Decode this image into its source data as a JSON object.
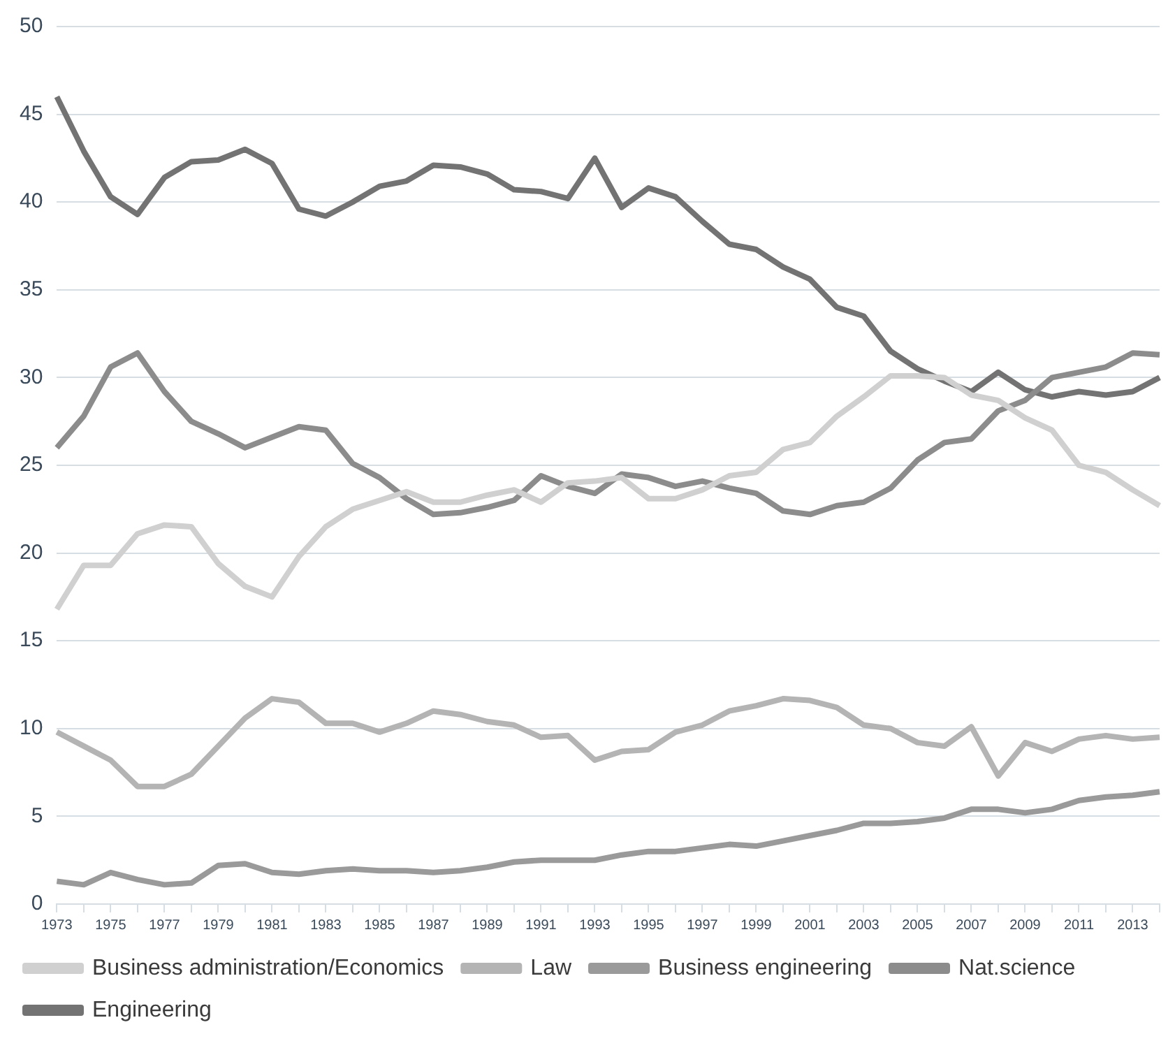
{
  "chart_data": {
    "type": "line",
    "categories": [
      "1973",
      null,
      "1975",
      null,
      "1977",
      null,
      "1979",
      null,
      "1981",
      null,
      "1983",
      null,
      "1985",
      null,
      "1987",
      null,
      "1989",
      null,
      "1991",
      null,
      "1993",
      null,
      "1995",
      null,
      "1997",
      null,
      "1999",
      null,
      "2001",
      null,
      "2003",
      null,
      "2005",
      null,
      "2007",
      null,
      "2009",
      null,
      "2011",
      null,
      "2013",
      null
    ],
    "series": [
      {
        "name": "Business administration/Economics",
        "color": "#d0d0d0",
        "values": [
          16.8,
          19.3,
          19.3,
          21.1,
          21.6,
          21.5,
          19.4,
          18.1,
          17.5,
          19.8,
          21.5,
          22.5,
          23,
          23.5,
          22.9,
          22.9,
          23.3,
          23.6,
          22.9,
          24,
          24.1,
          24.3,
          23.1,
          23.1,
          23.6,
          24.4,
          24.6,
          25.9,
          26.3,
          27.8,
          28.9,
          30.1,
          30.1,
          30,
          29,
          28.7,
          27.7,
          27,
          25,
          24.6,
          23.6,
          22.7
        ]
      },
      {
        "name": "Law",
        "color": "#b4b4b4",
        "values": [
          9.8,
          9,
          8.2,
          6.7,
          6.7,
          7.4,
          9,
          10.6,
          11.7,
          11.5,
          10.3,
          10.3,
          9.8,
          10.3,
          11,
          10.8,
          10.4,
          10.2,
          9.5,
          9.6,
          8.2,
          8.7,
          8.8,
          9.8,
          10.2,
          11,
          11.3,
          11.7,
          11.6,
          11.2,
          10.2,
          10,
          9.2,
          9,
          10.1,
          7.3,
          9.2,
          8.7,
          9.4,
          9.6,
          9.4,
          9.5
        ]
      },
      {
        "name": "Business engineering",
        "color": "#9a9a9a",
        "values": [
          1.3,
          1.1,
          1.8,
          1.4,
          1.1,
          1.2,
          2.2,
          2.3,
          1.8,
          1.7,
          1.9,
          2,
          1.9,
          1.9,
          1.8,
          1.9,
          2.1,
          2.4,
          2.5,
          2.5,
          2.5,
          2.8,
          3,
          3,
          3.2,
          3.4,
          3.3,
          3.6,
          3.9,
          4.2,
          4.6,
          4.6,
          4.7,
          4.9,
          5.4,
          5.4,
          5.2,
          5.4,
          5.9,
          6.1,
          6.2,
          6.4
        ]
      },
      {
        "name": "Nat.science",
        "color": "#8c8c8c",
        "values": [
          26,
          27.8,
          30.6,
          31.4,
          29.2,
          27.5,
          26.8,
          26,
          26.6,
          27.2,
          27,
          25.1,
          24.3,
          23.1,
          22.2,
          22.3,
          22.6,
          23,
          24.4,
          23.8,
          23.4,
          24.5,
          24.3,
          23.8,
          24.1,
          23.7,
          23.4,
          22.4,
          22.2,
          22.7,
          22.9,
          23.7,
          25.3,
          26.3,
          26.5,
          28.1,
          28.7,
          30,
          30.3,
          30.6,
          31.4,
          31.3
        ]
      },
      {
        "name": "Engineering",
        "color": "#737373",
        "values": [
          46,
          42.9,
          40.3,
          39.3,
          41.4,
          42.3,
          42.4,
          43,
          42.2,
          39.6,
          39.2,
          40,
          40.9,
          41.2,
          42.1,
          42,
          41.6,
          40.7,
          40.6,
          40.2,
          42.5,
          39.7,
          40.8,
          40.3,
          38.9,
          37.6,
          37.3,
          36.3,
          35.6,
          34,
          33.5,
          31.5,
          30.5,
          29.8,
          29.2,
          30.3,
          29.3,
          28.9,
          29.2,
          29,
          29.2,
          30
        ]
      }
    ],
    "ylim": [
      0,
      50
    ],
    "yticks": [
      0,
      5,
      10,
      15,
      20,
      25,
      30,
      35,
      40,
      45,
      50
    ],
    "grid": "y",
    "legend": "bottom",
    "marker": "none",
    "line_style": "solid"
  }
}
